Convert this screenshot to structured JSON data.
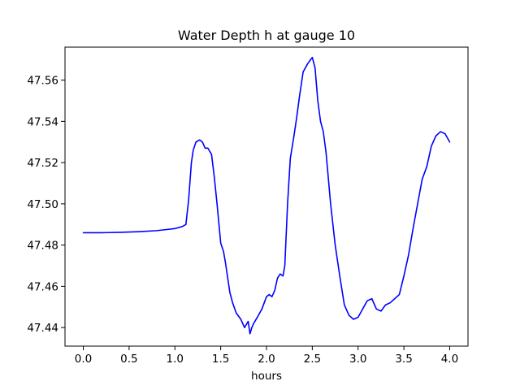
{
  "chart_data": {
    "type": "line",
    "title": "Water Depth h at gauge 10",
    "xlabel": "hours",
    "ylabel": "",
    "xlim": [
      -0.2,
      4.2
    ],
    "ylim": [
      47.431,
      47.576
    ],
    "grid": false,
    "xticks": [
      0.0,
      0.5,
      1.0,
      1.5,
      2.0,
      2.5,
      3.0,
      3.5,
      4.0
    ],
    "xtick_labels": [
      "0.0",
      "0.5",
      "1.0",
      "1.5",
      "2.0",
      "2.5",
      "3.0",
      "3.5",
      "4.0"
    ],
    "yticks": [
      47.44,
      47.46,
      47.48,
      47.5,
      47.52,
      47.54,
      47.56
    ],
    "ytick_labels": [
      "47.44",
      "47.46",
      "47.48",
      "47.50",
      "47.52",
      "47.54",
      "47.56"
    ],
    "series": [
      {
        "color": "#0000ff",
        "x": [
          0.0,
          0.2,
          0.4,
          0.6,
          0.8,
          0.9,
          1.0,
          1.08,
          1.12,
          1.15,
          1.18,
          1.2,
          1.23,
          1.27,
          1.3,
          1.33,
          1.36,
          1.4,
          1.43,
          1.46,
          1.5,
          1.53,
          1.55,
          1.57,
          1.6,
          1.63,
          1.67,
          1.72,
          1.76,
          1.8,
          1.82,
          1.84,
          1.86,
          1.9,
          1.95,
          2.0,
          2.03,
          2.06,
          2.09,
          2.12,
          2.15,
          2.18,
          2.2,
          2.23,
          2.26,
          2.3,
          2.33,
          2.36,
          2.4,
          2.45,
          2.5,
          2.53,
          2.56,
          2.59,
          2.62,
          2.65,
          2.7,
          2.75,
          2.8,
          2.85,
          2.9,
          2.95,
          3.0,
          3.05,
          3.1,
          3.15,
          3.2,
          3.25,
          3.3,
          3.35,
          3.4,
          3.45,
          3.5,
          3.55,
          3.6,
          3.65,
          3.7,
          3.75,
          3.8,
          3.85,
          3.9,
          3.95,
          4.0
        ],
        "y": [
          47.486,
          47.486,
          47.4862,
          47.4865,
          47.487,
          47.4875,
          47.488,
          47.489,
          47.49,
          47.502,
          47.52,
          47.526,
          47.53,
          47.531,
          47.53,
          47.527,
          47.527,
          47.524,
          47.513,
          47.5,
          47.481,
          47.477,
          47.472,
          47.466,
          47.457,
          47.452,
          47.447,
          47.444,
          47.44,
          47.443,
          47.437,
          47.44,
          47.442,
          47.445,
          47.449,
          47.455,
          47.456,
          47.455,
          47.458,
          47.464,
          47.466,
          47.465,
          47.47,
          47.5,
          47.522,
          47.533,
          47.542,
          47.552,
          47.564,
          47.568,
          47.571,
          47.566,
          47.55,
          47.54,
          47.535,
          47.525,
          47.5,
          47.48,
          47.465,
          47.451,
          47.446,
          47.444,
          47.445,
          47.449,
          47.453,
          47.454,
          47.449,
          47.448,
          47.451,
          47.452,
          47.454,
          47.456,
          47.465,
          47.475,
          47.488,
          47.5,
          47.512,
          47.518,
          47.528,
          47.533,
          47.535,
          47.534,
          47.53
        ]
      }
    ]
  }
}
